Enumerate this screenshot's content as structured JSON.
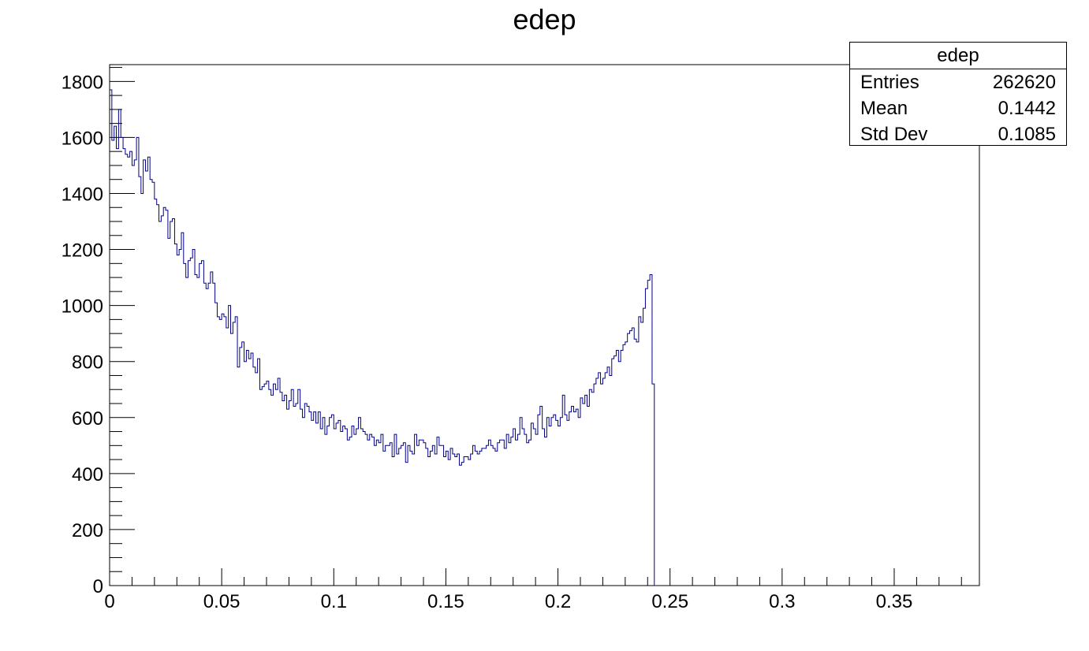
{
  "chart_data": {
    "type": "bar",
    "title": "edep",
    "xlabel": "",
    "ylabel": "",
    "xlim": [
      0,
      0.388
    ],
    "ylim": [
      0,
      1860
    ],
    "x_ticks": [
      0,
      0.05,
      0.1,
      0.15,
      0.2,
      0.25,
      0.3,
      0.35
    ],
    "x_tick_labels": [
      "0",
      "0.05",
      "0.1",
      "0.15",
      "0.2",
      "0.25",
      "0.3",
      "0.35"
    ],
    "y_ticks": [
      0,
      200,
      400,
      600,
      800,
      1000,
      1200,
      1400,
      1600,
      1800
    ],
    "y_tick_labels": [
      "0",
      "200",
      "400",
      "600",
      "800",
      "1000",
      "1200",
      "1400",
      "1600",
      "1800"
    ],
    "bin_width": 0.001,
    "bin_start": 0,
    "values": [
      1770,
      1590,
      1640,
      1560,
      1700,
      1600,
      1560,
      1540,
      1530,
      1550,
      1500,
      1520,
      1600,
      1460,
      1400,
      1520,
      1480,
      1530,
      1450,
      1440,
      1380,
      1360,
      1300,
      1320,
      1350,
      1340,
      1240,
      1300,
      1310,
      1220,
      1180,
      1200,
      1260,
      1150,
      1100,
      1160,
      1170,
      1200,
      1110,
      1100,
      1150,
      1160,
      1080,
      1060,
      1080,
      1120,
      1080,
      1010,
      960,
      950,
      970,
      960,
      920,
      1000,
      900,
      940,
      960,
      780,
      850,
      870,
      800,
      840,
      810,
      830,
      780,
      760,
      810,
      700,
      710,
      720,
      730,
      700,
      680,
      720,
      700,
      740,
      690,
      660,
      680,
      630,
      660,
      700,
      640,
      650,
      700,
      630,
      600,
      650,
      640,
      620,
      590,
      620,
      580,
      620,
      560,
      600,
      540,
      570,
      600,
      610,
      560,
      580,
      590,
      550,
      570,
      560,
      520,
      530,
      570,
      540,
      560,
      600,
      560,
      550,
      540,
      520,
      540,
      530,
      500,
      520,
      510,
      540,
      480,
      500,
      500,
      510,
      460,
      540,
      470,
      490,
      500,
      510,
      440,
      500,
      480,
      470,
      540,
      500,
      520,
      520,
      510,
      490,
      460,
      480,
      500,
      470,
      530,
      500,
      500,
      460,
      480,
      450,
      490,
      470,
      460,
      470,
      430,
      440,
      460,
      460,
      450,
      470,
      500,
      480,
      470,
      480,
      490,
      490,
      500,
      520,
      500,
      490,
      480,
      510,
      520,
      520,
      490,
      540,
      510,
      530,
      560,
      520,
      540,
      600,
      560,
      540,
      510,
      520,
      580,
      560,
      540,
      610,
      640,
      560,
      530,
      600,
      570,
      600,
      610,
      590,
      570,
      600,
      680,
      610,
      590,
      620,
      640,
      620,
      630,
      600,
      670,
      650,
      680,
      640,
      700,
      690,
      720,
      740,
      760,
      720,
      740,
      760,
      780,
      750,
      810,
      820,
      840,
      800,
      840,
      860,
      870,
      900,
      910,
      920,
      880,
      870,
      960,
      940,
      990,
      1060,
      1090,
      1110,
      720,
      0
    ]
  },
  "stats": {
    "title": "edep",
    "entries_label": "Entries",
    "entries_value": "262620",
    "mean_label": "Mean",
    "mean_value": "0.1442",
    "stddev_label": "Std Dev",
    "stddev_value": "0.1085"
  },
  "colors": {
    "histogram_line": "#00008b",
    "axis": "#000000",
    "background": "#ffffff"
  }
}
